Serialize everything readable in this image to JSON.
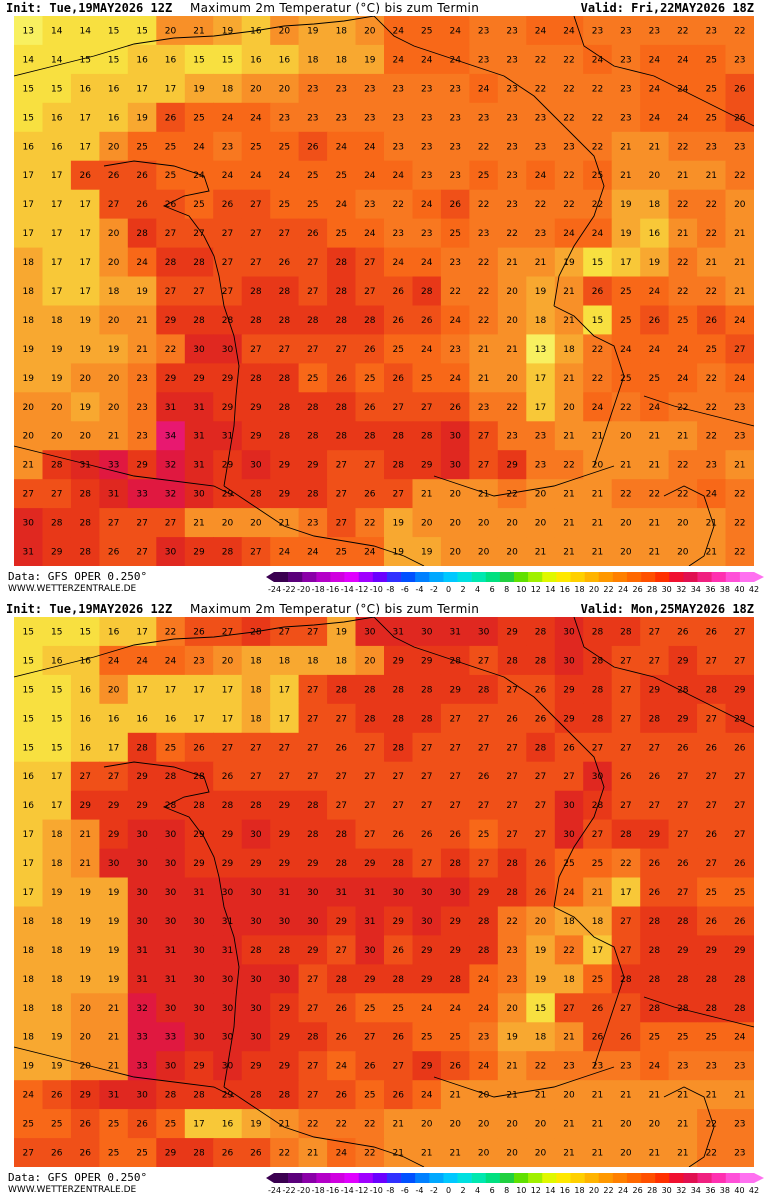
{
  "panels": [
    {
      "init_label": "Init: Tue,19MAY2026 12Z",
      "title": "Maximum 2m Temperatur (°C) bis zum Termin",
      "valid_label": "Valid: Fri,22MAY2026 18Z",
      "variant": 0
    },
    {
      "init_label": "Init: Tue,19MAY2026 12Z",
      "title": "Maximum 2m Temperatur (°C) bis zum Termin",
      "valid_label": "Valid: Mon,25MAY2026 18Z",
      "variant": 1
    }
  ],
  "footer": {
    "data_label": "Data: GFS OPER 0.250°",
    "site_label": "WWW.WETTERZENTRALE.DE"
  },
  "colorscale": {
    "ticks": [
      "-24",
      "-22",
      "-20",
      "-18",
      "-16",
      "-14",
      "-12",
      "-10",
      "-8",
      "-6",
      "-4",
      "-2",
      "0",
      "2",
      "4",
      "6",
      "8",
      "10",
      "12",
      "14",
      "16",
      "18",
      "20",
      "22",
      "24",
      "26",
      "28",
      "30",
      "32",
      "34",
      "36",
      "38",
      "40",
      "42"
    ],
    "colors": [
      "#3a0050",
      "#5a007a",
      "#8a00a8",
      "#b400c8",
      "#d000e0",
      "#e000ff",
      "#a000ff",
      "#6a00ff",
      "#3030ff",
      "#0050ff",
      "#0080ff",
      "#00a8ff",
      "#00c8ff",
      "#00e0e0",
      "#00e8b0",
      "#00e080",
      "#20d040",
      "#60e000",
      "#a0f000",
      "#e0f800",
      "#ffe800",
      "#ffd000",
      "#ffb400",
      "#ff9800",
      "#ff8000",
      "#ff6800",
      "#ff5000",
      "#ff3000",
      "#f01030",
      "#e01050",
      "#f02080",
      "#ff30b0",
      "#ff50d8",
      "#ff70f0"
    ]
  },
  "map_grid": {
    "cols": 26,
    "rows": 19,
    "top": [
      [
        13,
        14,
        14,
        15,
        15,
        20,
        21,
        19,
        16,
        20,
        19,
        18,
        20,
        24,
        25,
        24,
        23,
        23,
        24,
        24,
        23,
        23,
        23,
        22,
        23,
        22
      ],
      [
        14,
        14,
        15,
        15,
        16,
        16,
        15,
        15,
        16,
        16,
        18,
        18,
        19,
        24,
        24,
        24,
        23,
        23,
        22,
        22,
        24,
        23,
        24,
        24,
        25,
        23
      ],
      [
        15,
        15,
        16,
        16,
        17,
        17,
        19,
        18,
        20,
        20,
        23,
        23,
        23,
        23,
        23,
        23,
        24,
        23,
        22,
        22,
        22,
        23,
        24,
        24,
        25,
        26
      ],
      [
        15,
        16,
        17,
        16,
        19,
        26,
        25,
        24,
        24,
        23,
        23,
        23,
        23,
        23,
        23,
        23,
        23,
        23,
        23,
        22,
        22,
        23,
        24,
        24,
        25,
        26
      ],
      [
        16,
        16,
        17,
        20,
        25,
        25,
        24,
        23,
        25,
        25,
        26,
        24,
        24,
        23,
        23,
        23,
        22,
        23,
        23,
        23,
        22,
        21,
        21,
        22,
        23,
        23
      ],
      [
        17,
        17,
        26,
        26,
        26,
        25,
        24,
        24,
        24,
        24,
        25,
        25,
        24,
        24,
        23,
        23,
        25,
        23,
        24,
        22,
        25,
        21,
        20,
        21,
        21,
        22
      ],
      [
        17,
        17,
        17,
        27,
        26,
        26,
        25,
        26,
        27,
        25,
        25,
        24,
        23,
        22,
        24,
        26,
        22,
        23,
        22,
        22,
        22,
        19,
        18,
        22,
        22,
        20
      ],
      [
        17,
        17,
        17,
        20,
        28,
        27,
        27,
        27,
        27,
        27,
        26,
        25,
        24,
        23,
        23,
        25,
        23,
        22,
        23,
        24,
        24,
        19,
        16,
        21,
        22,
        21
      ],
      [
        18,
        17,
        17,
        20,
        24,
        28,
        28,
        27,
        27,
        26,
        27,
        28,
        27,
        24,
        24,
        23,
        22,
        21,
        21,
        19,
        15,
        17,
        19,
        22,
        21,
        21
      ],
      [
        18,
        17,
        17,
        18,
        19,
        27,
        27,
        27,
        28,
        28,
        27,
        28,
        27,
        26,
        28,
        22,
        22,
        20,
        19,
        21,
        26,
        25,
        24,
        22,
        22,
        21
      ],
      [
        18,
        18,
        19,
        20,
        21,
        29,
        28,
        28,
        28,
        28,
        28,
        28,
        28,
        26,
        26,
        24,
        22,
        20,
        18,
        21,
        15,
        25,
        26,
        25,
        26,
        24
      ],
      [
        19,
        19,
        19,
        19,
        21,
        22,
        30,
        30,
        27,
        27,
        27,
        27,
        26,
        25,
        24,
        23,
        21,
        21,
        13,
        18,
        22,
        24,
        24,
        24,
        25,
        27
      ],
      [
        19,
        19,
        20,
        20,
        23,
        29,
        29,
        29,
        28,
        28,
        25,
        26,
        25,
        26,
        25,
        24,
        21,
        20,
        17,
        21,
        22,
        25,
        25,
        24,
        22,
        24
      ],
      [
        20,
        20,
        19,
        20,
        23,
        31,
        31,
        29,
        29,
        28,
        28,
        28,
        26,
        27,
        27,
        26,
        23,
        22,
        17,
        20,
        24,
        22,
        24,
        22,
        22,
        23
      ],
      [
        20,
        20,
        20,
        21,
        23,
        34,
        31,
        31,
        29,
        28,
        28,
        28,
        28,
        28,
        28,
        30,
        27,
        23,
        23,
        21,
        21,
        20,
        21,
        21,
        22,
        23
      ],
      [
        21,
        28,
        31,
        33,
        29,
        32,
        31,
        29,
        30,
        29,
        29,
        27,
        27,
        28,
        29,
        30,
        27,
        29,
        23,
        22,
        20,
        21,
        21,
        22,
        23,
        21
      ],
      [
        27,
        27,
        28,
        31,
        33,
        32,
        30,
        29,
        28,
        29,
        28,
        27,
        26,
        27,
        21,
        20,
        21,
        22,
        20,
        21,
        21,
        22,
        22,
        22,
        24,
        22
      ],
      [
        30,
        28,
        28,
        27,
        27,
        27,
        21,
        20,
        20,
        21,
        23,
        27,
        22,
        19,
        20,
        20,
        20,
        20,
        20,
        21,
        21,
        20,
        21,
        20,
        21,
        22
      ],
      [
        31,
        29,
        28,
        26,
        27,
        30,
        29,
        28,
        27,
        24,
        24,
        25,
        24,
        19,
        19,
        20,
        20,
        20,
        21,
        21,
        21,
        20,
        21,
        20,
        21,
        22
      ]
    ],
    "bottom": [
      [
        15,
        15,
        15,
        16,
        17,
        22,
        26,
        27,
        28,
        27,
        27,
        19,
        30,
        31,
        30,
        31,
        30,
        29,
        28,
        30,
        28,
        28,
        27,
        26,
        26,
        27
      ],
      [
        15,
        16,
        16,
        24,
        24,
        24,
        23,
        20,
        18,
        18,
        18,
        18,
        20,
        29,
        29,
        28,
        27,
        28,
        28,
        30,
        28,
        27,
        27,
        29,
        27,
        27
      ],
      [
        15,
        15,
        16,
        20,
        17,
        17,
        17,
        17,
        18,
        17,
        27,
        28,
        28,
        28,
        28,
        29,
        28,
        27,
        26,
        29,
        28,
        27,
        29,
        28,
        28,
        29
      ],
      [
        15,
        15,
        16,
        16,
        16,
        16,
        17,
        17,
        18,
        17,
        27,
        27,
        28,
        28,
        28,
        27,
        27,
        26,
        26,
        29,
        28,
        27,
        28,
        29,
        27,
        29
      ],
      [
        15,
        15,
        16,
        17,
        28,
        25,
        26,
        27,
        27,
        27,
        27,
        26,
        27,
        28,
        27,
        27,
        27,
        27,
        28,
        26,
        27,
        27,
        27,
        26,
        26,
        26
      ],
      [
        16,
        17,
        27,
        27,
        29,
        28,
        28,
        26,
        27,
        27,
        27,
        27,
        27,
        27,
        27,
        27,
        26,
        27,
        27,
        27,
        30,
        26,
        26,
        27,
        27,
        27
      ],
      [
        16,
        17,
        29,
        29,
        29,
        28,
        28,
        28,
        28,
        29,
        28,
        27,
        27,
        27,
        27,
        27,
        27,
        27,
        27,
        30,
        28,
        27,
        27,
        27,
        27,
        27
      ],
      [
        17,
        18,
        21,
        29,
        30,
        30,
        29,
        29,
        30,
        29,
        28,
        28,
        27,
        26,
        26,
        26,
        25,
        27,
        27,
        30,
        27,
        28,
        29,
        27,
        26,
        27
      ],
      [
        17,
        18,
        21,
        30,
        30,
        30,
        29,
        29,
        29,
        29,
        29,
        28,
        29,
        28,
        27,
        28,
        27,
        28,
        26,
        25,
        25,
        22,
        26,
        26,
        27,
        26
      ],
      [
        17,
        19,
        19,
        19,
        30,
        30,
        31,
        30,
        30,
        31,
        30,
        31,
        31,
        30,
        30,
        30,
        29,
        28,
        26,
        24,
        21,
        17,
        26,
        27,
        25,
        25
      ],
      [
        18,
        18,
        19,
        19,
        30,
        30,
        30,
        31,
        30,
        30,
        30,
        29,
        31,
        29,
        30,
        29,
        28,
        22,
        20,
        18,
        18,
        27,
        28,
        28,
        26,
        26
      ],
      [
        18,
        18,
        19,
        19,
        31,
        31,
        30,
        31,
        28,
        28,
        29,
        27,
        30,
        26,
        29,
        29,
        28,
        23,
        19,
        22,
        17,
        27,
        28,
        29,
        29,
        29
      ],
      [
        18,
        18,
        19,
        19,
        31,
        31,
        30,
        30,
        30,
        30,
        27,
        28,
        29,
        28,
        29,
        28,
        24,
        23,
        19,
        18,
        25,
        28,
        28,
        28,
        28,
        28
      ],
      [
        18,
        18,
        20,
        21,
        32,
        30,
        30,
        30,
        30,
        29,
        27,
        26,
        25,
        25,
        24,
        24,
        24,
        20,
        15,
        27,
        26,
        27,
        28,
        28,
        28,
        28
      ],
      [
        18,
        19,
        20,
        21,
        33,
        33,
        30,
        30,
        30,
        29,
        28,
        26,
        27,
        26,
        25,
        25,
        23,
        19,
        18,
        21,
        26,
        26,
        25,
        25,
        25,
        24
      ],
      [
        19,
        19,
        20,
        21,
        33,
        30,
        29,
        30,
        29,
        29,
        27,
        24,
        26,
        27,
        29,
        26,
        24,
        21,
        22,
        23,
        23,
        23,
        24,
        23,
        23,
        23
      ],
      [
        24,
        26,
        29,
        31,
        30,
        28,
        28,
        29,
        28,
        28,
        27,
        26,
        25,
        26,
        24,
        21,
        20,
        21,
        21,
        20,
        21,
        21,
        21,
        21,
        21,
        21
      ],
      [
        25,
        25,
        26,
        25,
        26,
        25,
        17,
        16,
        19,
        21,
        22,
        22,
        22,
        21,
        20,
        20,
        20,
        20,
        20,
        21,
        21,
        20,
        20,
        21,
        22,
        23
      ],
      [
        27,
        26,
        26,
        25,
        25,
        29,
        28,
        26,
        26,
        22,
        21,
        24,
        22,
        21,
        21,
        21,
        20,
        20,
        20,
        21,
        21,
        20,
        21,
        21,
        22,
        23
      ]
    ]
  }
}
